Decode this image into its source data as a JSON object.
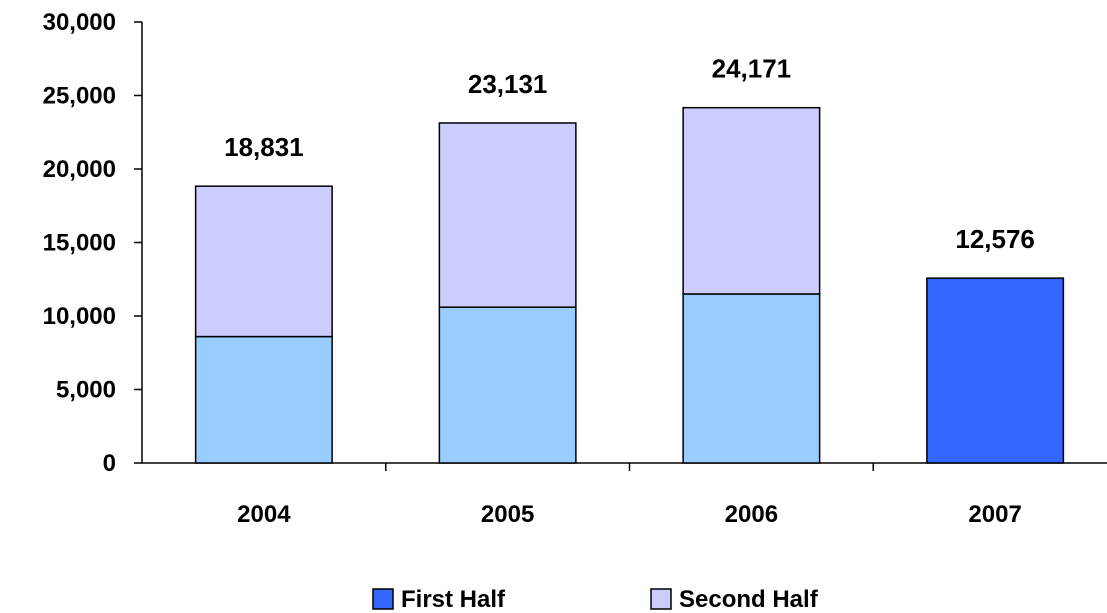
{
  "chart_data": {
    "type": "bar",
    "stacked": true,
    "categories": [
      "2004",
      "2005",
      "2006",
      "2007"
    ],
    "series": [
      {
        "name": "First Half",
        "values": [
          8600,
          10600,
          11500,
          12576
        ],
        "color": "#99CCFF",
        "highlight_color": "#3366FF"
      },
      {
        "name": "Second Half",
        "values": [
          10231,
          12531,
          12671,
          0
        ],
        "color": "#CCCCFF"
      }
    ],
    "totals": [
      18831,
      23131,
      24171,
      12576
    ],
    "total_labels": [
      "18,831",
      "23,131",
      "24,171",
      "12,576"
    ],
    "highlight_category": "2007",
    "ylim": [
      0,
      30000
    ],
    "yticks": [
      0,
      5000,
      10000,
      15000,
      20000,
      25000,
      30000
    ],
    "ytick_labels": [
      "0",
      "5,000",
      "10,000",
      "15,000",
      "20,000",
      "25,000",
      "30,000"
    ],
    "legend_position": "bottom",
    "grid": false
  },
  "legend": {
    "items": [
      {
        "label": "First Half",
        "color": "#3366FF"
      },
      {
        "label": "Second Half",
        "color": "#CCCCFF"
      }
    ]
  }
}
